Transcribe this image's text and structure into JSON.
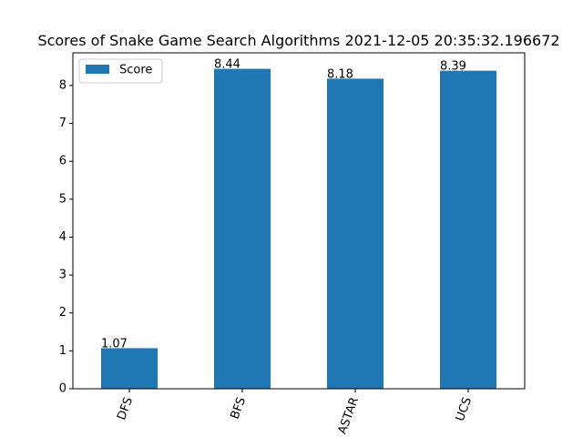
{
  "chart_data": {
    "type": "bar",
    "title": "Scores of Snake Game Search Algorithms 2021-12-05 20:35:32.196672",
    "xlabel": "",
    "ylabel": "",
    "categories": [
      "DFS",
      "BFS",
      "ASTAR",
      "UCS"
    ],
    "series": [
      {
        "name": "Score",
        "values": [
          1.07,
          8.44,
          8.18,
          8.39
        ],
        "color": "#1f77b4"
      }
    ],
    "data_labels": [
      "1.07",
      "8.44",
      "8.18",
      "8.39"
    ],
    "ylim": [
      0,
      8.862
    ],
    "yticks": [
      0,
      1,
      2,
      3,
      4,
      5,
      6,
      7,
      8
    ],
    "xtick_rotation_deg": 70,
    "grid": false,
    "legend": {
      "position": "top-left",
      "entries": [
        "Score"
      ]
    }
  }
}
